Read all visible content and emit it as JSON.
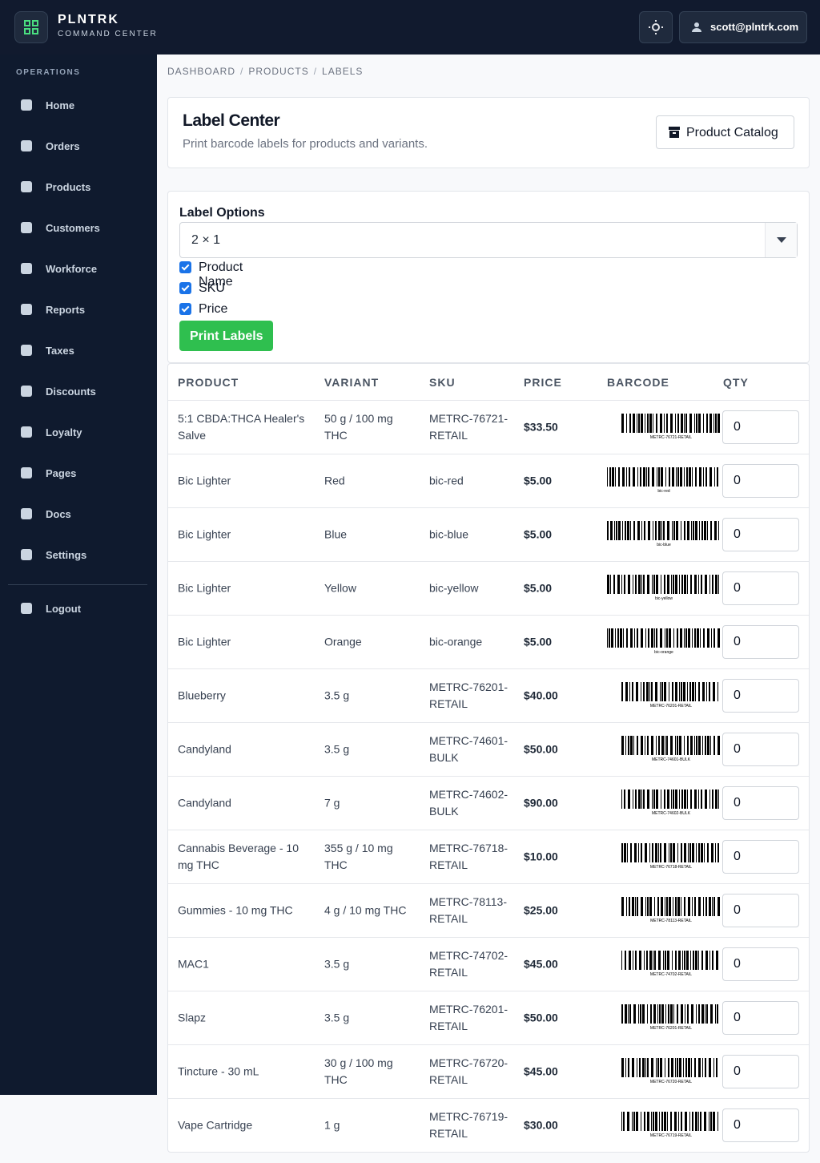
{
  "header": {
    "brand": "PLNTRK",
    "subtitle": "COMMAND CENTER",
    "user": "scott@plntrk.com"
  },
  "sidebar": {
    "section": "OPERATIONS",
    "items": [
      "Home",
      "Orders",
      "Products",
      "Customers",
      "Workforce",
      "Reports",
      "Taxes",
      "Discounts",
      "Loyalty",
      "Pages",
      "Docs",
      "Settings"
    ],
    "logout": "Logout"
  },
  "breadcrumb": {
    "items": [
      "DASHBOARD",
      "PRODUCTS",
      "LABELS"
    ],
    "separator": "/"
  },
  "page": {
    "title": "Label Center",
    "description": "Print barcode labels for products and variants.",
    "button": "Product Catalog"
  },
  "options": {
    "title": "Label Options",
    "size": "2 × 1",
    "checkboxes": [
      "Product Name",
      "SKU",
      "Price"
    ],
    "button": "Print Labels"
  },
  "table": {
    "columns": [
      "PRODUCT",
      "VARIANT",
      "SKU",
      "PRICE",
      "BARCODE",
      "QTY"
    ],
    "rows": [
      {
        "product": "5:1 CBDA:THCA Healer's Salve",
        "variant": "50 g / 100 mg THC",
        "sku": "METRC-76721-RETAIL",
        "price": "$33.50",
        "qty": 0
      },
      {
        "product": "Bic Lighter",
        "variant": "Red",
        "sku": "bic-red",
        "price": "$5.00",
        "qty": 0
      },
      {
        "product": "Bic Lighter",
        "variant": "Blue",
        "sku": "bic-blue",
        "price": "$5.00",
        "qty": 0
      },
      {
        "product": "Bic Lighter",
        "variant": "Yellow",
        "sku": "bic-yellow",
        "price": "$5.00",
        "qty": 0
      },
      {
        "product": "Bic Lighter",
        "variant": "Orange",
        "sku": "bic-orange",
        "price": "$5.00",
        "qty": 0
      },
      {
        "product": "Blueberry",
        "variant": "3.5 g",
        "sku": "METRC-76201-RETAIL",
        "price": "$40.00",
        "qty": 0
      },
      {
        "product": "Candyland",
        "variant": "3.5 g",
        "sku": "METRC-74601-BULK",
        "price": "$50.00",
        "qty": 0
      },
      {
        "product": "Candyland",
        "variant": "7 g",
        "sku": "METRC-74602-BULK",
        "price": "$90.00",
        "qty": 0
      },
      {
        "product": "Cannabis Beverage - 10 mg THC",
        "variant": "355 g / 10 mg THC",
        "sku": "METRC-76718-RETAIL",
        "price": "$10.00",
        "qty": 0
      },
      {
        "product": "Gummies - 10 mg THC",
        "variant": "4 g / 10 mg THC",
        "sku": "METRC-78113-RETAIL",
        "price": "$25.00",
        "qty": 0
      },
      {
        "product": "MAC1",
        "variant": "3.5 g",
        "sku": "METRC-74702-RETAIL",
        "price": "$45.00",
        "qty": 0
      },
      {
        "product": "Slapz",
        "variant": "3.5 g",
        "sku": "METRC-76201-RETAIL",
        "price": "$50.00",
        "qty": 0
      },
      {
        "product": "Tincture - 30 mL",
        "variant": "30 g / 100 mg THC",
        "sku": "METRC-76720-RETAIL",
        "price": "$45.00",
        "qty": 0
      },
      {
        "product": "Vape Cartridge",
        "variant": "1 g",
        "sku": "METRC-76719-RETAIL",
        "price": "$30.00",
        "qty": 0
      }
    ]
  }
}
